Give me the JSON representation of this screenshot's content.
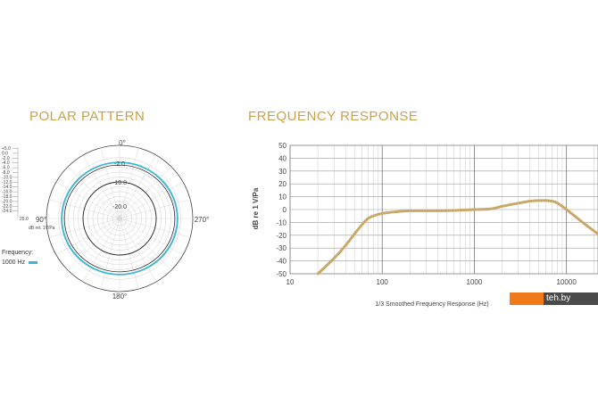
{
  "titles": {
    "polar": "POLAR PATTERN",
    "frequency": "FREQUENCY RESPONSE"
  },
  "watermark": "teh.by",
  "chart_data": [
    {
      "type": "polar",
      "angle_labels": {
        "top": "0°",
        "left": "90°",
        "bottom": "180°",
        "right": "270°"
      },
      "ring_labels": [
        "-2.0",
        "-10.0",
        "-20.0"
      ],
      "scale_labels": [
        "+5.0",
        "0.0",
        "-2.0",
        "-4.0",
        "-6.0",
        "-8.0",
        "-10.0",
        "-12.0",
        "-14.0",
        "-16.0",
        "-18.0",
        "-20.0",
        "-22.0",
        "-24.0"
      ],
      "scale_bottom": "25.0",
      "unit_label": "dB rel. 1V/Pa",
      "legend_title": "Frequency:",
      "series": [
        {
          "name": "1000 Hz",
          "color": "#3bb6d3",
          "level_db": -2.0
        }
      ],
      "reference_ring_db": -10.0
    },
    {
      "type": "line",
      "xscale": "log",
      "xlim": [
        10,
        22000
      ],
      "ylim": [
        -50,
        50
      ],
      "x_ticks": [
        "10",
        "100",
        "1000",
        "10000"
      ],
      "y_ticks": [
        "50",
        "40",
        "30",
        "20",
        "10",
        "0",
        "-10",
        "-20",
        "-30",
        "-40",
        "-50"
      ],
      "ylabel": "dB re 1 V/Pa",
      "xlabel": "1/3 Smoothed Frequency Response (Hz)",
      "grid": true,
      "series": [
        {
          "color": "#c9a86a",
          "x": [
            20,
            30,
            40,
            50,
            60,
            70,
            80,
            100,
            150,
            200,
            300,
            500,
            800,
            1000,
            1500,
            2000,
            3000,
            4000,
            5000,
            6000,
            7000,
            8000,
            10000,
            15000,
            22000
          ],
          "y": [
            -50,
            -38,
            -28,
            -19,
            -12,
            -7,
            -5,
            -3,
            -1.5,
            -1,
            -1,
            -0.8,
            -0.3,
            0,
            0.5,
            2.5,
            5,
            6.5,
            7,
            7,
            6.5,
            5,
            0,
            -10,
            -19
          ]
        }
      ]
    }
  ]
}
